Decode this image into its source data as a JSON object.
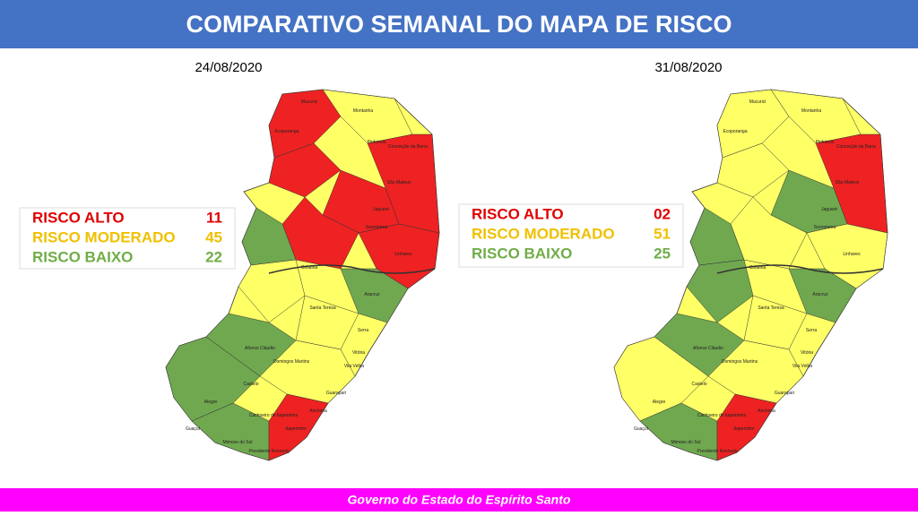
{
  "header": {
    "title": "COMPARATIVO SEMANAL DO MAPA DE RISCO"
  },
  "panels": [
    {
      "date": "24/08/2020",
      "legend": {
        "labels": [
          "RISCO ALTO",
          "RISCO MODERADO",
          "RISCO BAIXO"
        ],
        "values": [
          11,
          45,
          22
        ]
      }
    },
    {
      "date": "31/08/2020",
      "legend": {
        "labels": [
          "RISCO ALTO",
          "RISCO MODERADO",
          "RISCO BAIXO"
        ],
        "values": [
          2,
          51,
          25
        ],
        "value_labels": [
          "02",
          "51",
          "25"
        ]
      }
    }
  ],
  "map_labels": [
    "Mucurici",
    "Montanha",
    "Ecoporanga",
    "Pinheiros",
    "Conceição da Barra",
    "São Mateus",
    "Jaguaré",
    "Sooretama",
    "Linhares",
    "Colatina",
    "Aracruz",
    "Santa Teresa",
    "Serra",
    "Vitória",
    "Vila Velha",
    "Domingos Martins",
    "Afonso Cláudio",
    "Castelo",
    "Alegre",
    "Guaçuí",
    "Anchieta",
    "Guarapari",
    "Cachoeiro de Itapemirim",
    "Itapemirim",
    "Mimoso do Sul",
    "Presidente Kennedy"
  ],
  "footer": {
    "text": "Governo do Estado do Espírito Santo"
  }
}
